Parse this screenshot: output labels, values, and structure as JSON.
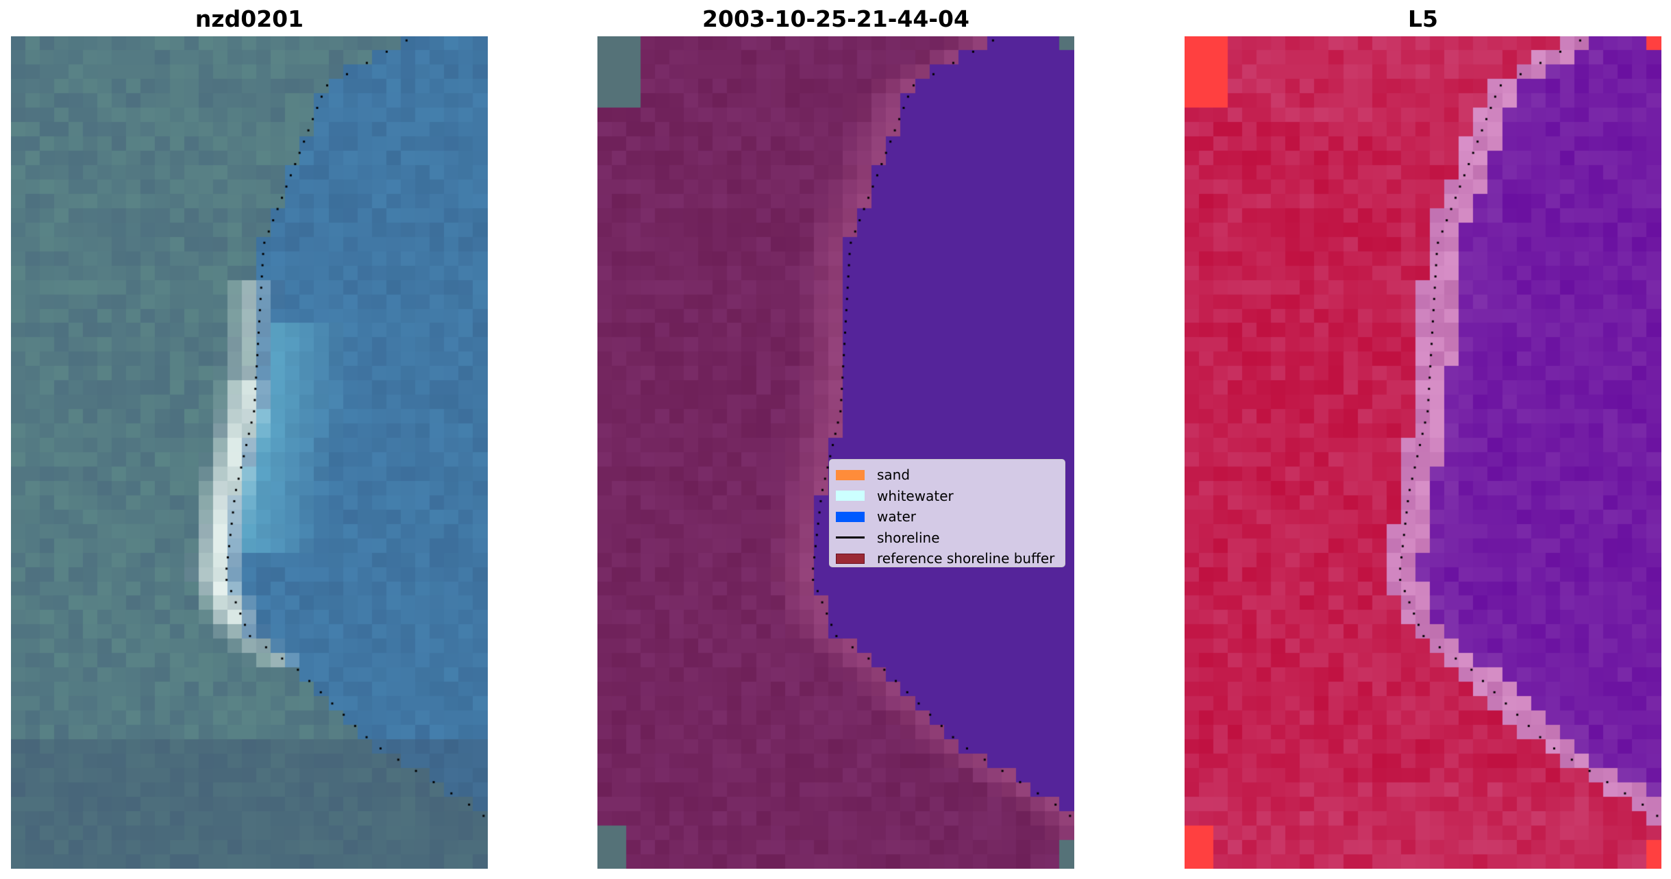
{
  "panels": [
    {
      "title": "nzd0201"
    },
    {
      "title": "2003-10-25-21-44-04"
    },
    {
      "title": "L5"
    }
  ],
  "legend": {
    "items": [
      {
        "label": "sand",
        "color": "#ff8c3a",
        "kind": "patch"
      },
      {
        "label": "whitewater",
        "color": "#ccffff",
        "kind": "patch"
      },
      {
        "label": "water",
        "color": "#005aff",
        "kind": "patch"
      },
      {
        "label": "shoreline",
        "color": "#000000",
        "kind": "line"
      },
      {
        "label": "reference shoreline buffer",
        "color": "#9b2a35",
        "kind": "patch"
      }
    ]
  },
  "colors": {
    "water_class": "#55249a",
    "land_overlay": "#72245e",
    "l5_land": "#c01040",
    "l5_water": "#6a10a0"
  }
}
